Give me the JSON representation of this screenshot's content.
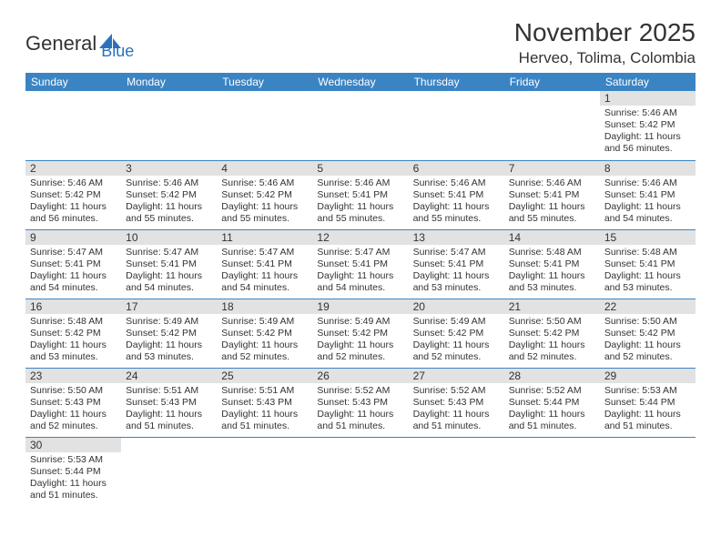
{
  "logo": {
    "text1": "General",
    "text2": "Blue"
  },
  "header": {
    "month_title": "November 2025",
    "location": "Herveo, Tolima, Colombia"
  },
  "colors": {
    "header_bg": "#3b84c4",
    "header_text": "#ffffff",
    "daynum_bg": "#e2e2e2",
    "text": "#333333",
    "rule": "#3b84c4",
    "logo_blue": "#2d72b8"
  },
  "day_labels": [
    "Sunday",
    "Monday",
    "Tuesday",
    "Wednesday",
    "Thursday",
    "Friday",
    "Saturday"
  ],
  "weeks": [
    [
      null,
      null,
      null,
      null,
      null,
      null,
      {
        "n": "1",
        "sr": "5:46 AM",
        "ss": "5:42 PM",
        "dh": "11",
        "dm": "56"
      }
    ],
    [
      {
        "n": "2",
        "sr": "5:46 AM",
        "ss": "5:42 PM",
        "dh": "11",
        "dm": "56"
      },
      {
        "n": "3",
        "sr": "5:46 AM",
        "ss": "5:42 PM",
        "dh": "11",
        "dm": "55"
      },
      {
        "n": "4",
        "sr": "5:46 AM",
        "ss": "5:42 PM",
        "dh": "11",
        "dm": "55"
      },
      {
        "n": "5",
        "sr": "5:46 AM",
        "ss": "5:41 PM",
        "dh": "11",
        "dm": "55"
      },
      {
        "n": "6",
        "sr": "5:46 AM",
        "ss": "5:41 PM",
        "dh": "11",
        "dm": "55"
      },
      {
        "n": "7",
        "sr": "5:46 AM",
        "ss": "5:41 PM",
        "dh": "11",
        "dm": "55"
      },
      {
        "n": "8",
        "sr": "5:46 AM",
        "ss": "5:41 PM",
        "dh": "11",
        "dm": "54"
      }
    ],
    [
      {
        "n": "9",
        "sr": "5:47 AM",
        "ss": "5:41 PM",
        "dh": "11",
        "dm": "54"
      },
      {
        "n": "10",
        "sr": "5:47 AM",
        "ss": "5:41 PM",
        "dh": "11",
        "dm": "54"
      },
      {
        "n": "11",
        "sr": "5:47 AM",
        "ss": "5:41 PM",
        "dh": "11",
        "dm": "54"
      },
      {
        "n": "12",
        "sr": "5:47 AM",
        "ss": "5:41 PM",
        "dh": "11",
        "dm": "54"
      },
      {
        "n": "13",
        "sr": "5:47 AM",
        "ss": "5:41 PM",
        "dh": "11",
        "dm": "53"
      },
      {
        "n": "14",
        "sr": "5:48 AM",
        "ss": "5:41 PM",
        "dh": "11",
        "dm": "53"
      },
      {
        "n": "15",
        "sr": "5:48 AM",
        "ss": "5:41 PM",
        "dh": "11",
        "dm": "53"
      }
    ],
    [
      {
        "n": "16",
        "sr": "5:48 AM",
        "ss": "5:42 PM",
        "dh": "11",
        "dm": "53"
      },
      {
        "n": "17",
        "sr": "5:49 AM",
        "ss": "5:42 PM",
        "dh": "11",
        "dm": "53"
      },
      {
        "n": "18",
        "sr": "5:49 AM",
        "ss": "5:42 PM",
        "dh": "11",
        "dm": "52"
      },
      {
        "n": "19",
        "sr": "5:49 AM",
        "ss": "5:42 PM",
        "dh": "11",
        "dm": "52"
      },
      {
        "n": "20",
        "sr": "5:49 AM",
        "ss": "5:42 PM",
        "dh": "11",
        "dm": "52"
      },
      {
        "n": "21",
        "sr": "5:50 AM",
        "ss": "5:42 PM",
        "dh": "11",
        "dm": "52"
      },
      {
        "n": "22",
        "sr": "5:50 AM",
        "ss": "5:42 PM",
        "dh": "11",
        "dm": "52"
      }
    ],
    [
      {
        "n": "23",
        "sr": "5:50 AM",
        "ss": "5:43 PM",
        "dh": "11",
        "dm": "52"
      },
      {
        "n": "24",
        "sr": "5:51 AM",
        "ss": "5:43 PM",
        "dh": "11",
        "dm": "51"
      },
      {
        "n": "25",
        "sr": "5:51 AM",
        "ss": "5:43 PM",
        "dh": "11",
        "dm": "51"
      },
      {
        "n": "26",
        "sr": "5:52 AM",
        "ss": "5:43 PM",
        "dh": "11",
        "dm": "51"
      },
      {
        "n": "27",
        "sr": "5:52 AM",
        "ss": "5:43 PM",
        "dh": "11",
        "dm": "51"
      },
      {
        "n": "28",
        "sr": "5:52 AM",
        "ss": "5:44 PM",
        "dh": "11",
        "dm": "51"
      },
      {
        "n": "29",
        "sr": "5:53 AM",
        "ss": "5:44 PM",
        "dh": "11",
        "dm": "51"
      }
    ],
    [
      {
        "n": "30",
        "sr": "5:53 AM",
        "ss": "5:44 PM",
        "dh": "11",
        "dm": "51"
      },
      null,
      null,
      null,
      null,
      null,
      null
    ]
  ],
  "labels": {
    "sunrise": "Sunrise:",
    "sunset": "Sunset:",
    "daylight_prefix": "Daylight:",
    "hours_word": "hours",
    "and_word": "and",
    "minutes_word": "minutes."
  }
}
